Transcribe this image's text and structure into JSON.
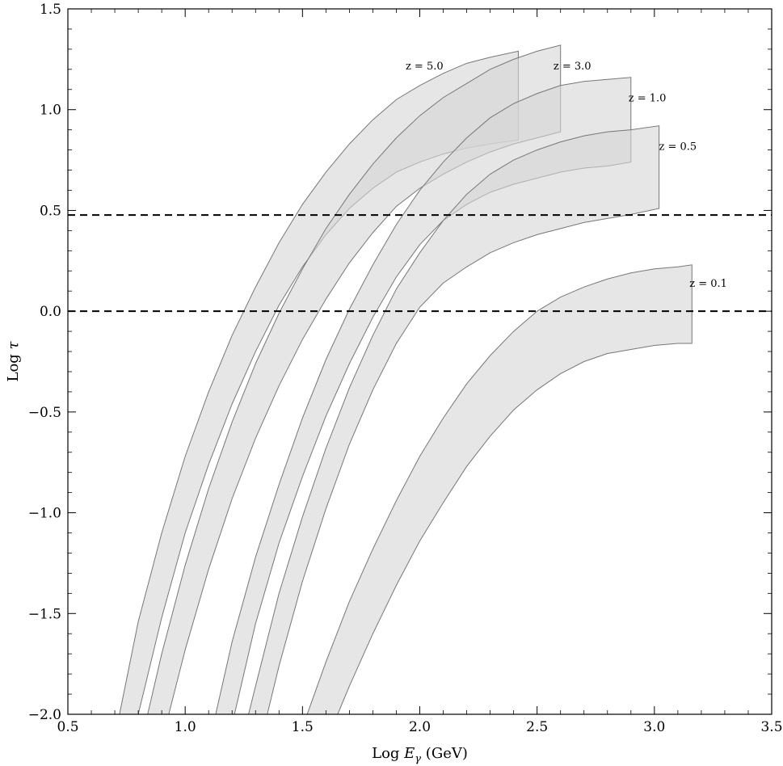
{
  "chart_data": {
    "type": "area",
    "xlabel_prefix": "Log ",
    "xlabel_var": "E",
    "xlabel_sub": "γ",
    "xlabel_unit": " (GeV)",
    "ylabel_prefix": "Log ",
    "ylabel_var": "τ",
    "xlim": [
      0.5,
      3.5
    ],
    "ylim": [
      -2.0,
      1.5
    ],
    "x_ticks": [
      "0.5",
      "1.0",
      "1.5",
      "2.0",
      "2.5",
      "3.0",
      "3.5"
    ],
    "y_ticks": [
      "−2.0",
      "−1.5",
      "−1.0",
      "−0.5",
      "0.0",
      "0.5",
      "1.0",
      "1.5"
    ],
    "x_tick_values": [
      0.5,
      1.0,
      1.5,
      2.0,
      2.5,
      3.0,
      3.5
    ],
    "y_tick_values": [
      -2.0,
      -1.5,
      -1.0,
      -0.5,
      0.0,
      0.5,
      1.0,
      1.5
    ],
    "reference_lines": [
      {
        "y": 0.477,
        "style": "dashed"
      },
      {
        "y": 0.0,
        "style": "dashed"
      }
    ],
    "fill_color": "#d6d6d6",
    "edge_color": "#777777",
    "series": [
      {
        "name": "z = 5.0",
        "upper": [
          [
            0.72,
            -2.0
          ],
          [
            0.8,
            -1.54
          ],
          [
            0.9,
            -1.1
          ],
          [
            1.0,
            -0.72
          ],
          [
            1.1,
            -0.4
          ],
          [
            1.2,
            -0.12
          ],
          [
            1.3,
            0.12
          ],
          [
            1.4,
            0.34
          ],
          [
            1.5,
            0.53
          ],
          [
            1.6,
            0.69
          ],
          [
            1.7,
            0.83
          ],
          [
            1.8,
            0.95
          ],
          [
            1.9,
            1.05
          ],
          [
            2.0,
            1.12
          ],
          [
            2.1,
            1.18
          ],
          [
            2.2,
            1.23
          ],
          [
            2.3,
            1.26
          ],
          [
            2.42,
            1.29
          ]
        ],
        "lower": [
          [
            0.8,
            -2.0
          ],
          [
            0.9,
            -1.52
          ],
          [
            1.0,
            -1.1
          ],
          [
            1.1,
            -0.76
          ],
          [
            1.2,
            -0.46
          ],
          [
            1.3,
            -0.2
          ],
          [
            1.4,
            0.03
          ],
          [
            1.5,
            0.22
          ],
          [
            1.6,
            0.38
          ],
          [
            1.7,
            0.51
          ],
          [
            1.8,
            0.61
          ],
          [
            1.9,
            0.69
          ],
          [
            2.0,
            0.74
          ],
          [
            2.1,
            0.78
          ],
          [
            2.2,
            0.81
          ],
          [
            2.3,
            0.83
          ],
          [
            2.42,
            0.85
          ]
        ]
      },
      {
        "name": "z = 3.0",
        "upper": [
          [
            0.84,
            -2.0
          ],
          [
            0.9,
            -1.7
          ],
          [
            1.0,
            -1.26
          ],
          [
            1.1,
            -0.88
          ],
          [
            1.2,
            -0.55
          ],
          [
            1.3,
            -0.26
          ],
          [
            1.4,
            -0.01
          ],
          [
            1.5,
            0.21
          ],
          [
            1.6,
            0.41
          ],
          [
            1.7,
            0.58
          ],
          [
            1.8,
            0.73
          ],
          [
            1.9,
            0.86
          ],
          [
            2.0,
            0.97
          ],
          [
            2.1,
            1.06
          ],
          [
            2.2,
            1.13
          ],
          [
            2.3,
            1.2
          ],
          [
            2.4,
            1.25
          ],
          [
            2.5,
            1.29
          ],
          [
            2.6,
            1.32
          ]
        ],
        "lower": [
          [
            0.93,
            -2.0
          ],
          [
            1.0,
            -1.68
          ],
          [
            1.1,
            -1.28
          ],
          [
            1.2,
            -0.93
          ],
          [
            1.3,
            -0.63
          ],
          [
            1.4,
            -0.37
          ],
          [
            1.5,
            -0.14
          ],
          [
            1.6,
            0.06
          ],
          [
            1.7,
            0.24
          ],
          [
            1.8,
            0.39
          ],
          [
            1.9,
            0.52
          ],
          [
            2.0,
            0.61
          ],
          [
            2.1,
            0.68
          ],
          [
            2.2,
            0.74
          ],
          [
            2.3,
            0.79
          ],
          [
            2.4,
            0.83
          ],
          [
            2.5,
            0.86
          ],
          [
            2.6,
            0.89
          ]
        ]
      },
      {
        "name": "z = 1.0",
        "upper": [
          [
            1.13,
            -2.0
          ],
          [
            1.2,
            -1.64
          ],
          [
            1.3,
            -1.22
          ],
          [
            1.4,
            -0.86
          ],
          [
            1.5,
            -0.53
          ],
          [
            1.6,
            -0.24
          ],
          [
            1.7,
            0.01
          ],
          [
            1.8,
            0.23
          ],
          [
            1.9,
            0.43
          ],
          [
            2.0,
            0.6
          ],
          [
            2.1,
            0.74
          ],
          [
            2.2,
            0.86
          ],
          [
            2.3,
            0.96
          ],
          [
            2.4,
            1.03
          ],
          [
            2.5,
            1.08
          ],
          [
            2.6,
            1.12
          ],
          [
            2.7,
            1.14
          ],
          [
            2.8,
            1.15
          ],
          [
            2.9,
            1.16
          ]
        ],
        "lower": [
          [
            1.21,
            -2.0
          ],
          [
            1.3,
            -1.55
          ],
          [
            1.4,
            -1.15
          ],
          [
            1.5,
            -0.82
          ],
          [
            1.6,
            -0.52
          ],
          [
            1.7,
            -0.26
          ],
          [
            1.8,
            -0.03
          ],
          [
            1.9,
            0.17
          ],
          [
            2.0,
            0.33
          ],
          [
            2.1,
            0.45
          ],
          [
            2.2,
            0.53
          ],
          [
            2.3,
            0.59
          ],
          [
            2.4,
            0.63
          ],
          [
            2.5,
            0.66
          ],
          [
            2.6,
            0.69
          ],
          [
            2.7,
            0.71
          ],
          [
            2.8,
            0.72
          ],
          [
            2.9,
            0.74
          ]
        ]
      },
      {
        "name": "z = 0.5",
        "upper": [
          [
            1.27,
            -2.0
          ],
          [
            1.3,
            -1.86
          ],
          [
            1.4,
            -1.4
          ],
          [
            1.5,
            -1.02
          ],
          [
            1.6,
            -0.68
          ],
          [
            1.7,
            -0.38
          ],
          [
            1.8,
            -0.12
          ],
          [
            1.9,
            0.11
          ],
          [
            2.0,
            0.29
          ],
          [
            2.1,
            0.45
          ],
          [
            2.2,
            0.58
          ],
          [
            2.3,
            0.68
          ],
          [
            2.4,
            0.75
          ],
          [
            2.5,
            0.8
          ],
          [
            2.6,
            0.84
          ],
          [
            2.7,
            0.87
          ],
          [
            2.8,
            0.89
          ],
          [
            2.9,
            0.9
          ],
          [
            3.02,
            0.92
          ]
        ],
        "lower": [
          [
            1.35,
            -2.0
          ],
          [
            1.4,
            -1.76
          ],
          [
            1.5,
            -1.34
          ],
          [
            1.6,
            -0.98
          ],
          [
            1.7,
            -0.66
          ],
          [
            1.8,
            -0.39
          ],
          [
            1.9,
            -0.16
          ],
          [
            2.0,
            0.02
          ],
          [
            2.1,
            0.14
          ],
          [
            2.2,
            0.22
          ],
          [
            2.3,
            0.29
          ],
          [
            2.4,
            0.34
          ],
          [
            2.5,
            0.38
          ],
          [
            2.6,
            0.41
          ],
          [
            2.7,
            0.44
          ],
          [
            2.8,
            0.46
          ],
          [
            2.9,
            0.48
          ],
          [
            3.02,
            0.51
          ]
        ]
      },
      {
        "name": "z = 0.1",
        "upper": [
          [
            1.52,
            -2.0
          ],
          [
            1.6,
            -1.74
          ],
          [
            1.7,
            -1.44
          ],
          [
            1.8,
            -1.18
          ],
          [
            1.9,
            -0.94
          ],
          [
            2.0,
            -0.72
          ],
          [
            2.1,
            -0.53
          ],
          [
            2.2,
            -0.36
          ],
          [
            2.3,
            -0.22
          ],
          [
            2.4,
            -0.1
          ],
          [
            2.5,
            0.0
          ],
          [
            2.6,
            0.07
          ],
          [
            2.7,
            0.12
          ],
          [
            2.8,
            0.16
          ],
          [
            2.9,
            0.19
          ],
          [
            3.0,
            0.21
          ],
          [
            3.1,
            0.22
          ],
          [
            3.16,
            0.23
          ]
        ],
        "lower": [
          [
            1.65,
            -2.0
          ],
          [
            1.7,
            -1.86
          ],
          [
            1.8,
            -1.6
          ],
          [
            1.9,
            -1.36
          ],
          [
            2.0,
            -1.14
          ],
          [
            2.1,
            -0.95
          ],
          [
            2.2,
            -0.77
          ],
          [
            2.3,
            -0.62
          ],
          [
            2.4,
            -0.49
          ],
          [
            2.5,
            -0.39
          ],
          [
            2.6,
            -0.31
          ],
          [
            2.7,
            -0.25
          ],
          [
            2.8,
            -0.21
          ],
          [
            2.9,
            -0.19
          ],
          [
            3.0,
            -0.17
          ],
          [
            3.1,
            -0.16
          ],
          [
            3.16,
            -0.16
          ]
        ]
      }
    ],
    "band_labels": [
      {
        "text": "z = 5.0",
        "x": 2.02,
        "y": 1.2
      },
      {
        "text": "z = 3.0",
        "x": 2.65,
        "y": 1.2
      },
      {
        "text": "z = 1.0",
        "x": 2.97,
        "y": 1.04
      },
      {
        "text": "z = 0.5",
        "x": 3.1,
        "y": 0.8
      },
      {
        "text": "z = 0.1",
        "x": 3.23,
        "y": 0.12
      }
    ]
  }
}
